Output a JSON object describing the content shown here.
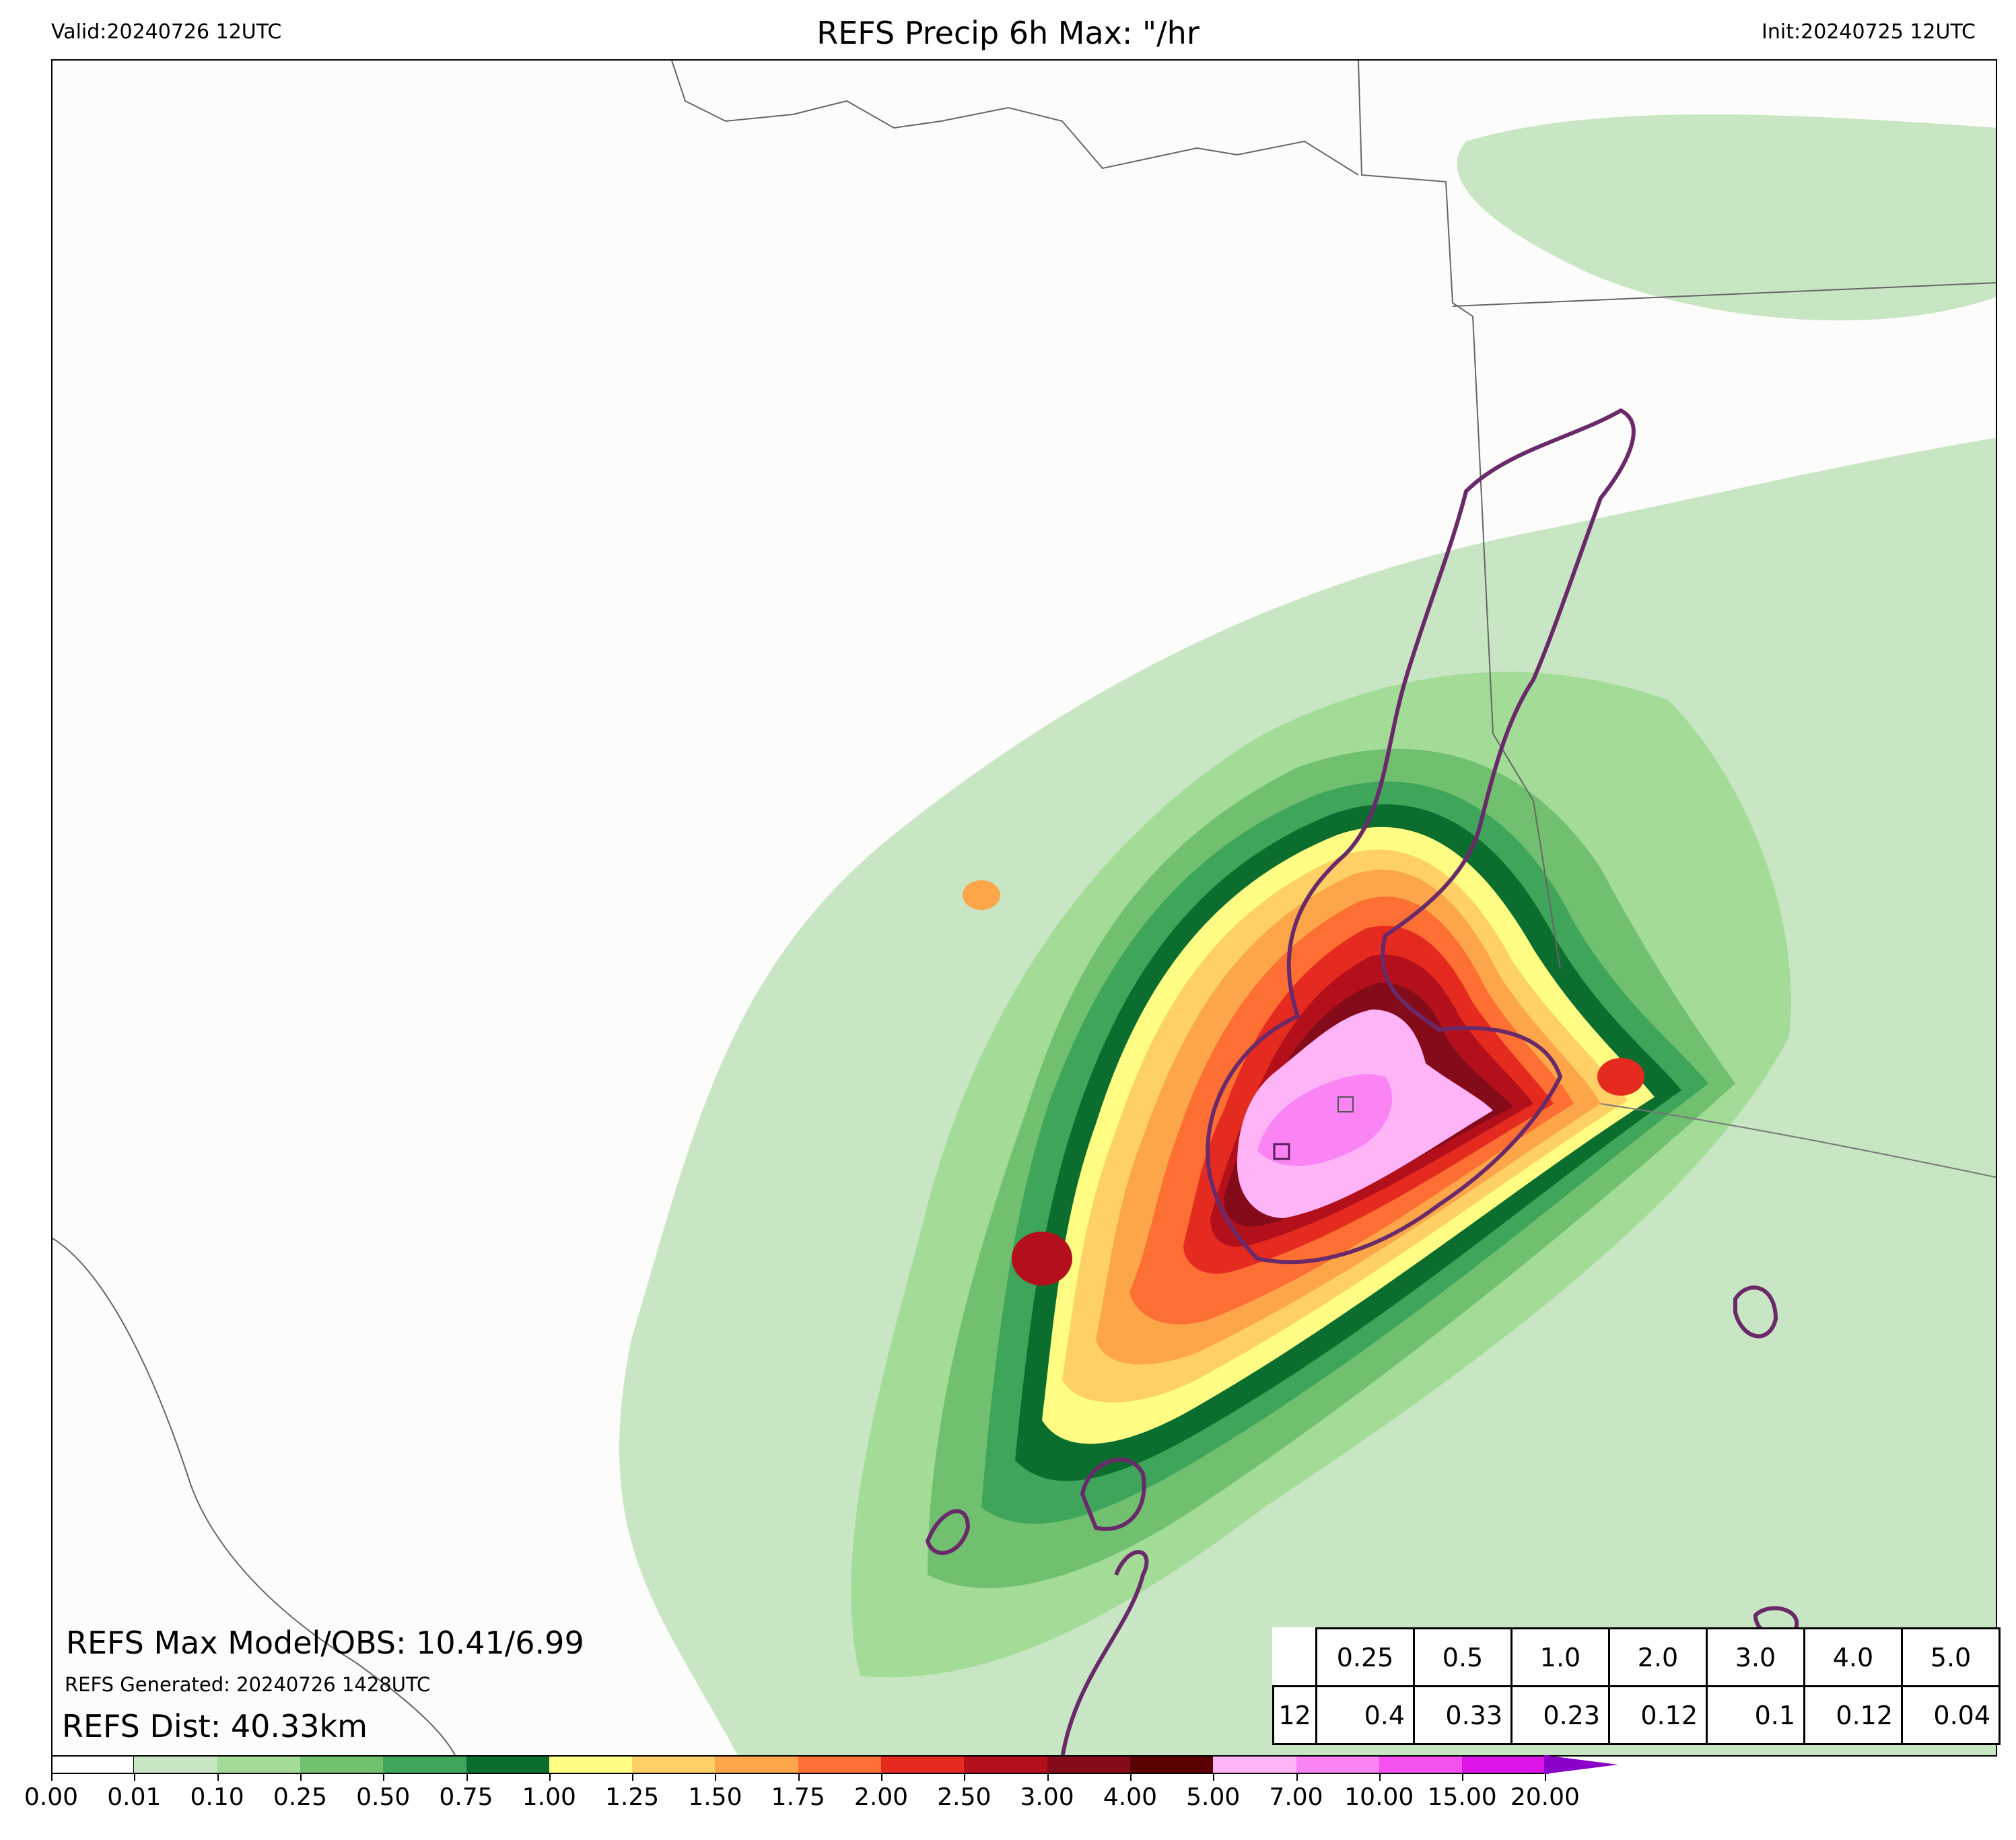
{
  "header": {
    "valid": "Valid:20240726 12UTC",
    "title": "REFS Precip 6h Max: \"/hr",
    "init": "Init:20240725 12UTC"
  },
  "stats": {
    "max_line": "REFS Max Model/OBS: 10.41/6.99",
    "generated": "REFS Generated: 20240726 1428UTC",
    "dist": "REFS Dist: 40.33km"
  },
  "table": {
    "thresholds": [
      "0.25",
      "0.5",
      "1.0",
      "2.0",
      "3.0",
      "4.0",
      "5.0"
    ],
    "row_label": "12",
    "values": [
      "0.4",
      "0.33",
      "0.23",
      "0.12",
      "0.1",
      "0.12",
      "0.04"
    ]
  },
  "colorbar": {
    "ticks": [
      "0.00",
      "0.01",
      "0.10",
      "0.25",
      "0.50",
      "0.75",
      "1.00",
      "1.25",
      "1.50",
      "1.75",
      "2.00",
      "2.50",
      "3.00",
      "4.00",
      "5.00",
      "7.00",
      "10.00",
      "15.00",
      "20.00"
    ],
    "colors": [
      "#ffffff",
      "#c8e6c3",
      "#a2dc96",
      "#70c070",
      "#3ea55a",
      "#0c6e2e",
      "#fffd84",
      "#fed065",
      "#fda649",
      "#fd6f33",
      "#e52b20",
      "#b4101c",
      "#840c1a",
      "#5a0000",
      "#ffb4f8",
      "#fa84f4",
      "#f450ee",
      "#dc14e8",
      "#9a00cc"
    ],
    "extend_color": "#8a00c8"
  }
}
